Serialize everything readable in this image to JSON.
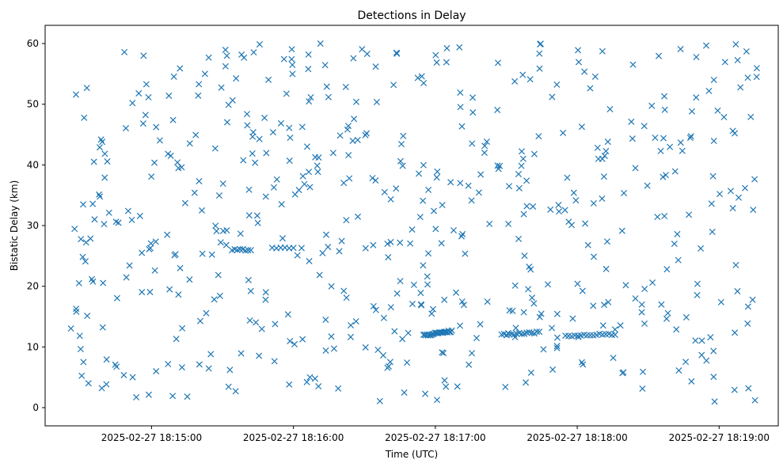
{
  "chart_data": {
    "type": "scatter",
    "title": "Detections in Delay",
    "xlabel": "Time (UTC)",
    "ylabel": "Bistatic Delay (km)",
    "x_start": "2025-02-27 18:14:25",
    "x_end": "2025-02-27 18:19:17",
    "xlim": [
      "2025-02-27 18:14:15",
      "2025-02-27 18:19:25"
    ],
    "ylim": [
      -3,
      63
    ],
    "x_ticks": [
      "2025-02-27 18:15:00",
      "2025-02-27 18:16:00",
      "2025-02-27 18:17:00",
      "2025-02-27 18:18:00",
      "2025-02-27 18:19:00"
    ],
    "y_ticks": [
      0,
      10,
      20,
      30,
      40,
      50,
      60
    ],
    "marker": "x",
    "color": "#1f77b4",
    "grid": false,
    "noise_point_count": 560,
    "tracks": [
      {
        "from": "2025-02-27 18:15:34",
        "to": "2025-02-27 18:15:42",
        "y_from": 26.0,
        "y_to": 26.0,
        "points": 8
      },
      {
        "from": "2025-02-27 18:15:51",
        "to": "2025-02-27 18:16:00",
        "y_from": 26.3,
        "y_to": 26.3,
        "points": 6
      },
      {
        "from": "2025-02-27 18:16:55",
        "to": "2025-02-27 18:17:07",
        "y_from": 11.9,
        "y_to": 12.6,
        "points": 26
      },
      {
        "from": "2025-02-27 18:17:28",
        "to": "2025-02-27 18:17:44",
        "y_from": 12.0,
        "y_to": 12.4,
        "points": 16
      },
      {
        "from": "2025-02-27 18:17:55",
        "to": "2025-02-27 18:18:16",
        "y_from": 11.8,
        "y_to": 12.1,
        "points": 17
      }
    ]
  }
}
